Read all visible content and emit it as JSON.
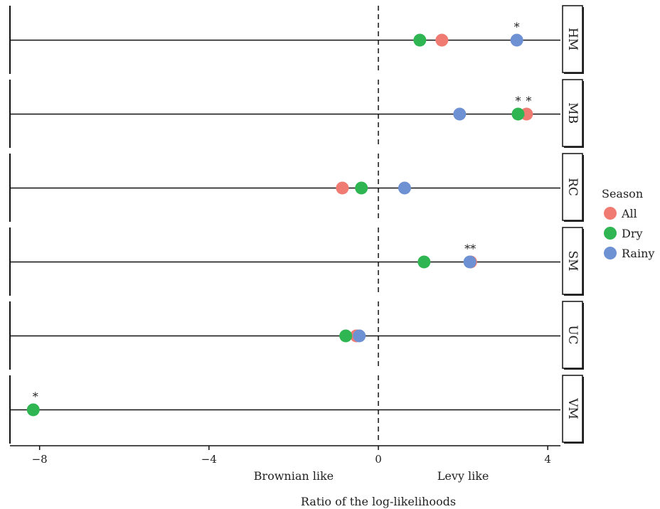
{
  "chart_data": {
    "type": "scatter",
    "facets": [
      "HM",
      "MB",
      "RC",
      "SM",
      "UC",
      "VM"
    ],
    "xlabel": "Ratio of the log-likelihoods",
    "ylabel": "",
    "xlim": [
      -8.7,
      4.3
    ],
    "x_ticks": [
      -8,
      -4,
      0,
      4
    ],
    "x_tick_labels": [
      "−8",
      "−4",
      "0",
      "4"
    ],
    "reference_line": 0,
    "region_labels": {
      "left": "Brownian like",
      "right": "Levy like"
    },
    "legend": {
      "title": "Season",
      "position": "right"
    },
    "series": [
      {
        "name": "All",
        "color": "#f07b72",
        "values": [
          {
            "facet": "HM",
            "x": 1.5
          },
          {
            "facet": "MB",
            "x": 3.5
          },
          {
            "facet": "RC",
            "x": -0.85
          },
          {
            "facet": "SM",
            "x": 2.18
          },
          {
            "facet": "UC",
            "x": -0.52
          }
        ]
      },
      {
        "name": "Dry",
        "color": "#2fb551",
        "values": [
          {
            "facet": "HM",
            "x": 0.98
          },
          {
            "facet": "MB",
            "x": 3.3
          },
          {
            "facet": "RC",
            "x": -0.4
          },
          {
            "facet": "SM",
            "x": 1.08
          },
          {
            "facet": "UC",
            "x": -0.77
          },
          {
            "facet": "VM",
            "x": -8.15
          }
        ]
      },
      {
        "name": "Rainy",
        "color": "#6e91d3",
        "values": [
          {
            "facet": "HM",
            "x": 3.27
          },
          {
            "facet": "MB",
            "x": 1.92
          },
          {
            "facet": "RC",
            "x": 0.62
          },
          {
            "facet": "SM",
            "x": 2.16
          },
          {
            "facet": "UC",
            "x": -0.45
          }
        ]
      }
    ],
    "annotations": [
      {
        "facet": "HM",
        "x": 3.27,
        "text": "*"
      },
      {
        "facet": "MB",
        "x": 3.3,
        "text": "*"
      },
      {
        "facet": "MB",
        "x": 3.55,
        "text": "*"
      },
      {
        "facet": "SM",
        "x": 2.17,
        "text": "**"
      },
      {
        "facet": "VM",
        "x": -8.1,
        "text": "*"
      }
    ]
  }
}
